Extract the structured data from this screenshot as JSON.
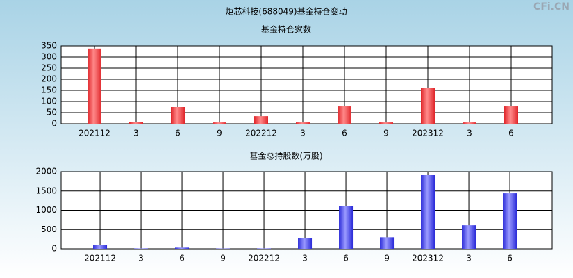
{
  "title": "炬芯科技(688049)基金持仓变动",
  "watermark": "CFi.CN",
  "chart_data": [
    {
      "type": "bar",
      "title": "基金持仓家数",
      "categories": [
        "202112",
        "3",
        "6",
        "9",
        "202212",
        "3",
        "6",
        "9",
        "202312",
        "3",
        "6"
      ],
      "values": [
        338,
        9,
        75,
        6,
        34,
        6,
        78,
        6,
        162,
        6,
        78
      ],
      "color": "#e0262b",
      "ylim": [
        0,
        350
      ],
      "yticks": [
        0,
        50,
        100,
        150,
        200,
        250,
        300,
        350
      ],
      "grid": true
    },
    {
      "type": "bar",
      "title": "基金总持股数(万股)",
      "categories": [
        "202112",
        "3",
        "6",
        "9",
        "202212",
        "3",
        "6",
        "9",
        "202312",
        "3",
        "6"
      ],
      "values": [
        90,
        10,
        30,
        8,
        10,
        270,
        1100,
        300,
        1910,
        610,
        1440
      ],
      "color": "#2a2ad8",
      "ylim": [
        0,
        2000
      ],
      "yticks": [
        0,
        500,
        1000,
        1500,
        2000
      ],
      "grid": true
    }
  ]
}
